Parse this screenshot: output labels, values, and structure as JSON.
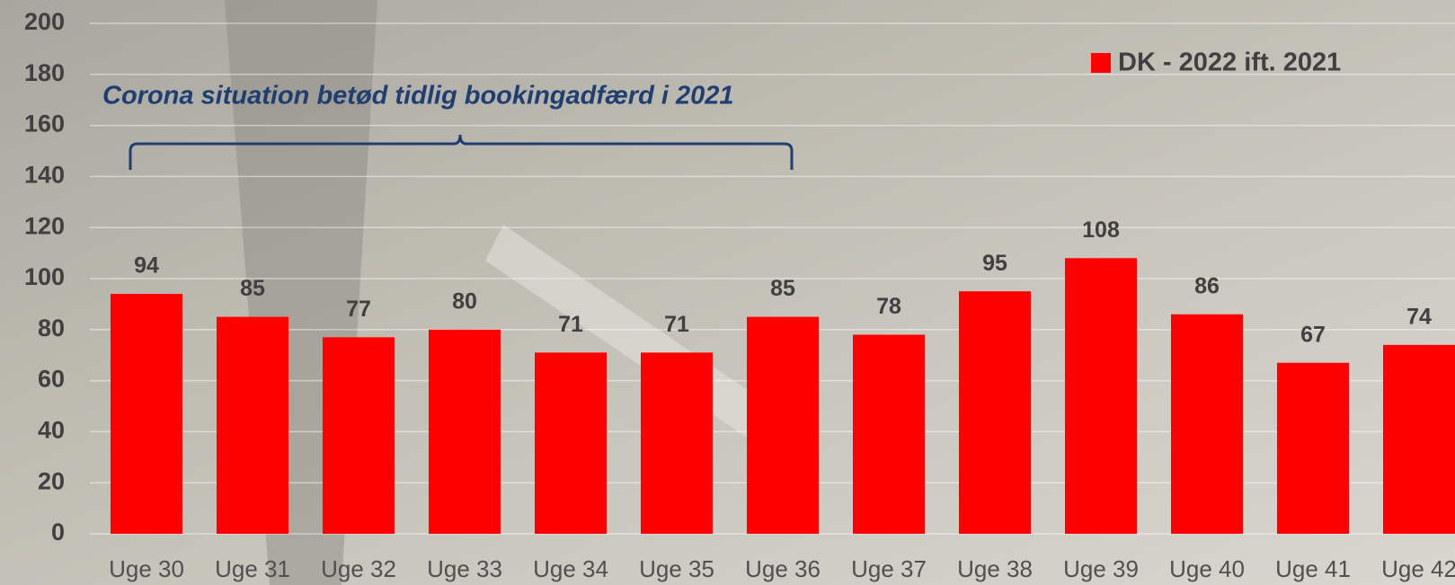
{
  "chart_data": {
    "type": "bar",
    "annotation": "Corona situation betød tidlig bookingadfærd i 2021",
    "categories": [
      "Uge 30",
      "Uge 31",
      "Uge 32",
      "Uge 33",
      "Uge 34",
      "Uge 35",
      "Uge 36",
      "Uge 37",
      "Uge 38",
      "Uge 39",
      "Uge 40",
      "Uge 41",
      "Uge 42"
    ],
    "series": [
      {
        "name": "DK - 2022 ift. 2021",
        "color": "#ff0000",
        "values": [
          94,
          85,
          77,
          80,
          71,
          71,
          85,
          78,
          95,
          108,
          86,
          67,
          74
        ]
      }
    ],
    "ylim": [
      0,
      200
    ],
    "yticks": [
      0,
      20,
      40,
      60,
      80,
      100,
      120,
      140,
      160,
      180,
      200
    ],
    "grid": true
  }
}
